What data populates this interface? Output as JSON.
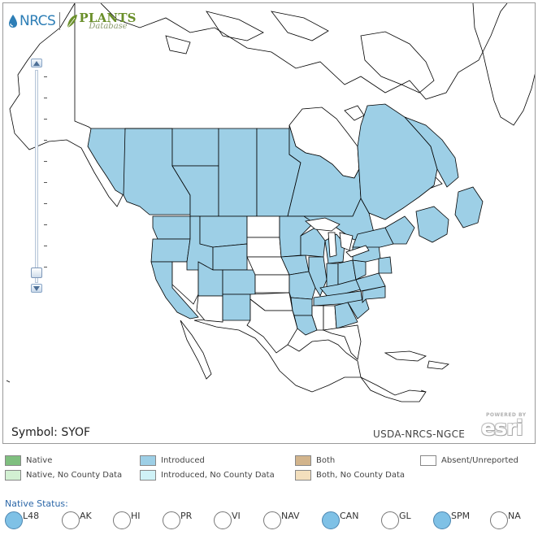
{
  "app": {
    "logo_nrcs": "NRCS",
    "logo_plants": "PLANTS",
    "logo_database": "Database"
  },
  "map": {
    "symbol_text": "Symbol: SYOF",
    "credit": "USDA-NRCS-NGCE",
    "esri_powered": "POWERED BY",
    "esri_name": "esri"
  },
  "colors": {
    "native": "#7fbf7f",
    "native_no_county": "#d2f0d2",
    "introduced": "#9dcfe6",
    "introduced_no_county": "#cff2f7",
    "both": "#d2b48c",
    "both_no_county": "#f3dfbd",
    "absent": "#ffffff",
    "radio_selected": "#7fc1e6",
    "native_status_label": "#2c67a8"
  },
  "legend": {
    "items": [
      {
        "label": "Native",
        "color_key": "native"
      },
      {
        "label": "Native, No County Data",
        "color_key": "native_no_county"
      },
      {
        "label": "Introduced",
        "color_key": "introduced"
      },
      {
        "label": "Introduced, No County Data",
        "color_key": "introduced_no_county"
      },
      {
        "label": "Both",
        "color_key": "both"
      },
      {
        "label": "Both, No County Data",
        "color_key": "both_no_county"
      },
      {
        "label": "Absent/Unreported",
        "color_key": "absent"
      }
    ]
  },
  "native_status": {
    "label": "Native Status:",
    "options": [
      {
        "code": "L48",
        "selected": true
      },
      {
        "code": "AK",
        "selected": false
      },
      {
        "code": "HI",
        "selected": false
      },
      {
        "code": "PR",
        "selected": false
      },
      {
        "code": "VI",
        "selected": false
      },
      {
        "code": "NAV",
        "selected": false
      },
      {
        "code": "CAN",
        "selected": true
      },
      {
        "code": "GL",
        "selected": false
      },
      {
        "code": "SPM",
        "selected": true
      },
      {
        "code": "NA",
        "selected": false
      }
    ]
  },
  "zoom": {
    "level_fraction": 0.02
  }
}
